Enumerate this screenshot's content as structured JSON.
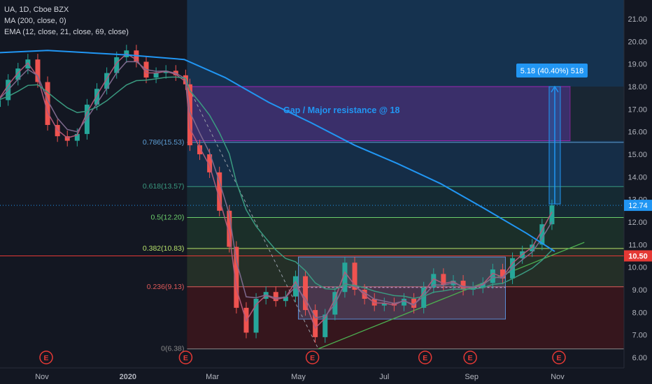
{
  "legend": {
    "symbol": "UA, 1D, Cboe BZX",
    "ma": "MA (200, close, 0)",
    "ema": "EMA (12, close, 21, close, 69, close)"
  },
  "annotation": {
    "resistance_text": "Gap / Major resistance @ 18",
    "measure_label": "5.18 (40.40%) 518"
  },
  "price_tag": {
    "last": "12.74",
    "level": "10.50"
  },
  "colors": {
    "background": "#131722",
    "ma200": "#2196f3",
    "ema12": "#b05a7a",
    "ema21": "#7e6a8e",
    "ema69": "#3a9a80",
    "up_candle": "#26a69a",
    "down_candle": "#ef5350",
    "fib_blue": "#5e9fd6",
    "fib_green": "#6ccf6c",
    "fib_red": "#e05a5a",
    "resistance_box": "#9c27b0",
    "measure": "#2196f3",
    "trendline": "#4caf50"
  },
  "chart_data": {
    "type": "candlestick",
    "y_axis": {
      "min": 6.0,
      "max": 21.0,
      "ticks": [
        "6.00",
        "7.00",
        "8.00",
        "9.00",
        "10.00",
        "11.00",
        "12.00",
        "13.00",
        "14.00",
        "15.00",
        "16.00",
        "17.00",
        "18.00",
        "19.00",
        "20.00",
        "21.00"
      ]
    },
    "x_axis": {
      "ticks": [
        {
          "label": "Nov",
          "date": "2019-11-01"
        },
        {
          "label": "2020",
          "date": "2020-01-01"
        },
        {
          "label": "Mar",
          "date": "2020-03-01"
        },
        {
          "label": "May",
          "date": "2020-05-01"
        },
        {
          "label": "Jul",
          "date": "2020-07-01"
        },
        {
          "label": "Sep",
          "date": "2020-09-01"
        },
        {
          "label": "Nov",
          "date": "2020-11-01"
        }
      ]
    },
    "earnings_markers": [
      {
        "label": "E",
        "date": "2019-11-04"
      },
      {
        "label": "E",
        "date": "2020-02-11"
      },
      {
        "label": "E",
        "date": "2020-05-11"
      },
      {
        "label": "E",
        "date": "2020-07-30"
      },
      {
        "label": "E",
        "date": "2020-08-31"
      },
      {
        "label": "E",
        "date": "2020-11-02"
      }
    ],
    "fib_levels": [
      {
        "label": "0.786(15.53)",
        "value": 15.53,
        "color": "#5e9fd6"
      },
      {
        "label": "0.618(13.57)",
        "value": 13.57,
        "color": "#3a9a80"
      },
      {
        "label": "0.5(12.20)",
        "value": 12.2,
        "color": "#6ccf6c"
      },
      {
        "label": "0.382(10.83)",
        "value": 10.83,
        "color": "#b5e06a"
      },
      {
        "label": "0.236(9.13)",
        "value": 9.13,
        "color": "#e05a5a"
      },
      {
        "label": "0(6.38)",
        "value": 6.38,
        "color": "#888888"
      }
    ],
    "horizontal_lines": [
      {
        "value": 10.5,
        "color": "#e53935"
      },
      {
        "value": 12.74,
        "color": "#2196f3"
      }
    ],
    "resistance_zone": {
      "top": 18.0,
      "bottom": 15.6,
      "start": "2020-02-15",
      "end": "2020-11-10"
    },
    "consolidation_box": {
      "top": 10.45,
      "bottom": 7.7,
      "start": "2020-05-01",
      "end": "2020-09-25"
    },
    "measure": {
      "from": 12.8,
      "to": 18.0,
      "date": "2020-10-30"
    },
    "trendline": [
      {
        "date": "2020-05-15",
        "value": 6.38
      },
      {
        "date": "2020-11-20",
        "value": 11.1
      }
    ],
    "candles_approx": [
      {
        "date": "2019-10-01",
        "close": 17.4
      },
      {
        "date": "2019-10-08",
        "close": 18.3
      },
      {
        "date": "2019-10-15",
        "close": 18.8
      },
      {
        "date": "2019-10-22",
        "close": 19.2
      },
      {
        "date": "2019-10-29",
        "close": 18.2
      },
      {
        "date": "2019-11-05",
        "close": 16.3
      },
      {
        "date": "2019-11-12",
        "close": 15.8
      },
      {
        "date": "2019-11-19",
        "close": 15.6
      },
      {
        "date": "2019-11-26",
        "close": 15.9
      },
      {
        "date": "2019-12-03",
        "close": 17.2
      },
      {
        "date": "2019-12-10",
        "close": 17.9
      },
      {
        "date": "2019-12-17",
        "close": 18.6
      },
      {
        "date": "2019-12-24",
        "close": 19.3
      },
      {
        "date": "2019-12-31",
        "close": 19.6
      },
      {
        "date": "2020-01-07",
        "close": 19.1
      },
      {
        "date": "2020-01-14",
        "close": 18.4
      },
      {
        "date": "2020-01-21",
        "close": 18.6
      },
      {
        "date": "2020-01-28",
        "close": 18.7
      },
      {
        "date": "2020-02-04",
        "close": 18.5
      },
      {
        "date": "2020-02-11",
        "close": 18.1
      },
      {
        "date": "2020-02-14",
        "close": 15.4
      },
      {
        "date": "2020-02-21",
        "close": 15.0
      },
      {
        "date": "2020-02-28",
        "close": 14.2
      },
      {
        "date": "2020-03-06",
        "close": 12.5
      },
      {
        "date": "2020-03-13",
        "close": 10.9
      },
      {
        "date": "2020-03-18",
        "close": 8.2
      },
      {
        "date": "2020-03-25",
        "close": 7.1
      },
      {
        "date": "2020-04-01",
        "close": 8.6
      },
      {
        "date": "2020-04-08",
        "close": 8.9
      },
      {
        "date": "2020-04-15",
        "close": 8.5
      },
      {
        "date": "2020-04-22",
        "close": 8.7
      },
      {
        "date": "2020-04-29",
        "close": 9.6
      },
      {
        "date": "2020-05-06",
        "close": 8.1
      },
      {
        "date": "2020-05-13",
        "close": 6.9
      },
      {
        "date": "2020-05-20",
        "close": 7.9
      },
      {
        "date": "2020-05-27",
        "close": 8.9
      },
      {
        "date": "2020-06-03",
        "close": 10.2
      },
      {
        "date": "2020-06-10",
        "close": 9.0
      },
      {
        "date": "2020-06-17",
        "close": 8.6
      },
      {
        "date": "2020-06-24",
        "close": 8.3
      },
      {
        "date": "2020-07-01",
        "close": 8.4
      },
      {
        "date": "2020-07-08",
        "close": 8.3
      },
      {
        "date": "2020-07-15",
        "close": 8.6
      },
      {
        "date": "2020-07-22",
        "close": 8.2
      },
      {
        "date": "2020-07-29",
        "close": 9.1
      },
      {
        "date": "2020-08-05",
        "close": 9.7
      },
      {
        "date": "2020-08-12",
        "close": 9.2
      },
      {
        "date": "2020-08-19",
        "close": 9.4
      },
      {
        "date": "2020-08-26",
        "close": 9.0
      },
      {
        "date": "2020-09-02",
        "close": 9.1
      },
      {
        "date": "2020-09-09",
        "close": 9.3
      },
      {
        "date": "2020-09-16",
        "close": 9.9
      },
      {
        "date": "2020-09-23",
        "close": 9.5
      },
      {
        "date": "2020-09-30",
        "close": 10.4
      },
      {
        "date": "2020-10-07",
        "close": 10.7
      },
      {
        "date": "2020-10-14",
        "close": 11.0
      },
      {
        "date": "2020-10-21",
        "close": 11.9
      },
      {
        "date": "2020-10-28",
        "close": 12.74
      }
    ],
    "ma200_approx": [
      {
        "date": "2019-10-01",
        "value": 19.5
      },
      {
        "date": "2019-11-05",
        "value": 19.6
      },
      {
        "date": "2020-01-01",
        "value": 19.4
      },
      {
        "date": "2020-02-10",
        "value": 19.2
      },
      {
        "date": "2020-03-10",
        "value": 18.4
      },
      {
        "date": "2020-04-10",
        "value": 17.3
      },
      {
        "date": "2020-05-10",
        "value": 16.4
      },
      {
        "date": "2020-06-10",
        "value": 15.4
      },
      {
        "date": "2020-07-10",
        "value": 14.6
      },
      {
        "date": "2020-08-10",
        "value": 13.7
      },
      {
        "date": "2020-09-10",
        "value": 12.6
      },
      {
        "date": "2020-10-10",
        "value": 11.5
      },
      {
        "date": "2020-10-30",
        "value": 10.7
      }
    ]
  }
}
